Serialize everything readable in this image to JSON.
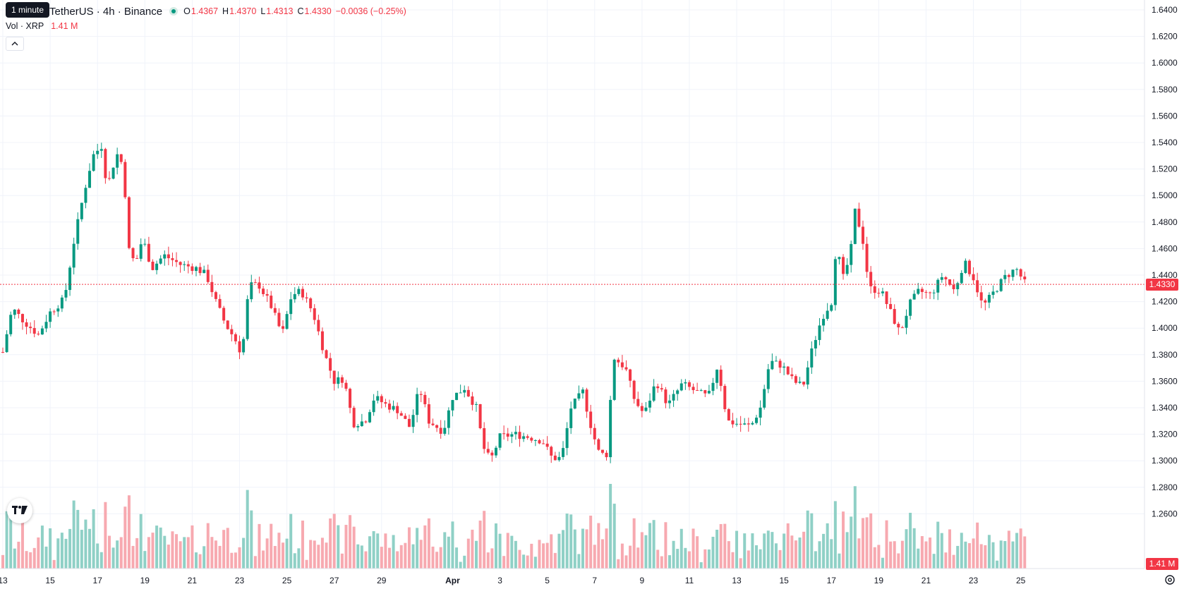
{
  "header": {
    "symbol_title": "TetherUS · 4h · Binance",
    "tooltip": "1 minute",
    "ohlc": {
      "o_label": "O",
      "o": "1.4367",
      "h_label": "H",
      "h": "1.4370",
      "l_label": "L",
      "l": "1.4313",
      "c_label": "C",
      "c": "1.4330"
    },
    "change": "−0.0036 (−0.25%)",
    "volume_label": "Vol · XRP",
    "volume_value": "1.41 M"
  },
  "price_scale": {
    "ticks": [
      "1.6400",
      "1.6200",
      "1.6000",
      "1.5800",
      "1.5600",
      "1.5400",
      "1.5200",
      "1.5000",
      "1.4800",
      "1.4600",
      "1.4400",
      "1.4200",
      "1.4000",
      "1.3800",
      "1.3600",
      "1.3400",
      "1.3200",
      "1.3000",
      "1.2800",
      "1.2600"
    ],
    "last_price_tag": "1.4330",
    "volume_tag": "1.41 M"
  },
  "time_scale": {
    "ticks": [
      {
        "label": "13",
        "day": 13
      },
      {
        "label": "15",
        "day": 15
      },
      {
        "label": "17",
        "day": 17
      },
      {
        "label": "19",
        "day": 19
      },
      {
        "label": "21",
        "day": 21
      },
      {
        "label": "23",
        "day": 23
      },
      {
        "label": "25",
        "day": 25
      },
      {
        "label": "27",
        "day": 27
      },
      {
        "label": "29",
        "day": 29
      },
      {
        "label": "Apr",
        "day": 32
      },
      {
        "label": "3",
        "day": 34
      },
      {
        "label": "5",
        "day": 36
      },
      {
        "label": "7",
        "day": 38
      },
      {
        "label": "9",
        "day": 40
      },
      {
        "label": "11",
        "day": 42
      },
      {
        "label": "13",
        "day": 44
      },
      {
        "label": "15",
        "day": 46
      },
      {
        "label": "17",
        "day": 48
      },
      {
        "label": "19",
        "day": 50
      },
      {
        "label": "21",
        "day": 52
      },
      {
        "label": "23",
        "day": 54
      },
      {
        "label": "25",
        "day": 56
      }
    ]
  },
  "colors": {
    "up": "#089981",
    "down": "#f23645",
    "vol_up": "#8fd0c6",
    "vol_down": "#f7a9b0",
    "grid": "#f0f3fa",
    "text": "#131722"
  },
  "chart_data": {
    "type": "candlestick",
    "title": "TetherUS · 4h · Binance",
    "timeframe": "4h",
    "ylim": [
      1.26,
      1.64
    ],
    "last_close": 1.433,
    "key_levels": {
      "anchors": [
        {
          "day": 13.0,
          "price": 1.382
        },
        {
          "day": 13.4,
          "price": 1.415
        },
        {
          "day": 13.9,
          "price": 1.405
        },
        {
          "day": 14.5,
          "price": 1.395
        },
        {
          "day": 15.0,
          "price": 1.412
        },
        {
          "day": 15.6,
          "price": 1.422
        },
        {
          "day": 16.0,
          "price": 1.465
        },
        {
          "day": 16.4,
          "price": 1.5
        },
        {
          "day": 16.8,
          "price": 1.53
        },
        {
          "day": 17.2,
          "price": 1.538
        },
        {
          "day": 17.4,
          "price": 1.505
        },
        {
          "day": 17.8,
          "price": 1.532
        },
        {
          "day": 18.1,
          "price": 1.522
        },
        {
          "day": 18.3,
          "price": 1.46
        },
        {
          "day": 18.6,
          "price": 1.448
        },
        {
          "day": 18.9,
          "price": 1.468
        },
        {
          "day": 19.3,
          "price": 1.445
        },
        {
          "day": 19.8,
          "price": 1.455
        },
        {
          "day": 20.5,
          "price": 1.448
        },
        {
          "day": 21.2,
          "price": 1.445
        },
        {
          "day": 21.6,
          "price": 1.44
        },
        {
          "day": 22.0,
          "price": 1.42
        },
        {
          "day": 22.4,
          "price": 1.403
        },
        {
          "day": 22.8,
          "price": 1.392
        },
        {
          "day": 23.1,
          "price": 1.38
        },
        {
          "day": 23.4,
          "price": 1.432
        },
        {
          "day": 23.8,
          "price": 1.433
        },
        {
          "day": 24.3,
          "price": 1.418
        },
        {
          "day": 24.8,
          "price": 1.395
        },
        {
          "day": 25.2,
          "price": 1.425
        },
        {
          "day": 25.6,
          "price": 1.428
        },
        {
          "day": 26.1,
          "price": 1.412
        },
        {
          "day": 26.6,
          "price": 1.38
        },
        {
          "day": 27.0,
          "price": 1.36
        },
        {
          "day": 27.4,
          "price": 1.362
        },
        {
          "day": 27.8,
          "price": 1.328
        },
        {
          "day": 28.3,
          "price": 1.33
        },
        {
          "day": 28.7,
          "price": 1.348
        },
        {
          "day": 29.2,
          "price": 1.342
        },
        {
          "day": 29.7,
          "price": 1.338
        },
        {
          "day": 30.2,
          "price": 1.325
        },
        {
          "day": 30.6,
          "price": 1.355
        },
        {
          "day": 31.0,
          "price": 1.33
        },
        {
          "day": 31.6,
          "price": 1.322
        },
        {
          "day": 32.0,
          "price": 1.348
        },
        {
          "day": 32.5,
          "price": 1.355
        },
        {
          "day": 33.0,
          "price": 1.34
        },
        {
          "day": 33.3,
          "price": 1.31
        },
        {
          "day": 33.6,
          "price": 1.3
        },
        {
          "day": 34.0,
          "price": 1.318
        },
        {
          "day": 34.6,
          "price": 1.32
        },
        {
          "day": 35.2,
          "price": 1.318
        },
        {
          "day": 35.8,
          "price": 1.315
        },
        {
          "day": 36.2,
          "price": 1.302
        },
        {
          "day": 36.6,
          "price": 1.302
        },
        {
          "day": 37.0,
          "price": 1.34
        },
        {
          "day": 37.5,
          "price": 1.352
        },
        {
          "day": 37.9,
          "price": 1.322
        },
        {
          "day": 38.2,
          "price": 1.305
        },
        {
          "day": 38.5,
          "price": 1.305
        },
        {
          "day": 38.8,
          "price": 1.378
        },
        {
          "day": 39.3,
          "price": 1.37
        },
        {
          "day": 39.7,
          "price": 1.345
        },
        {
          "day": 40.1,
          "price": 1.335
        },
        {
          "day": 40.6,
          "price": 1.36
        },
        {
          "day": 41.1,
          "price": 1.342
        },
        {
          "day": 41.7,
          "price": 1.358
        },
        {
          "day": 42.3,
          "price": 1.352
        },
        {
          "day": 42.8,
          "price": 1.348
        },
        {
          "day": 43.2,
          "price": 1.372
        },
        {
          "day": 43.6,
          "price": 1.33
        },
        {
          "day": 44.0,
          "price": 1.328
        },
        {
          "day": 44.6,
          "price": 1.326
        },
        {
          "day": 45.0,
          "price": 1.34
        },
        {
          "day": 45.4,
          "price": 1.375
        },
        {
          "day": 45.9,
          "price": 1.372
        },
        {
          "day": 46.4,
          "price": 1.36
        },
        {
          "day": 46.8,
          "price": 1.356
        },
        {
          "day": 47.2,
          "price": 1.385
        },
        {
          "day": 47.6,
          "price": 1.408
        },
        {
          "day": 48.0,
          "price": 1.42
        },
        {
          "day": 48.2,
          "price": 1.462
        },
        {
          "day": 48.5,
          "price": 1.438
        },
        {
          "day": 48.8,
          "price": 1.455
        },
        {
          "day": 49.0,
          "price": 1.488
        },
        {
          "day": 49.3,
          "price": 1.47
        },
        {
          "day": 49.6,
          "price": 1.43
        },
        {
          "day": 50.1,
          "price": 1.428
        },
        {
          "day": 50.5,
          "price": 1.412
        },
        {
          "day": 50.9,
          "price": 1.396
        },
        {
          "day": 51.3,
          "price": 1.418
        },
        {
          "day": 51.7,
          "price": 1.428
        },
        {
          "day": 52.2,
          "price": 1.425
        },
        {
          "day": 52.7,
          "price": 1.44
        },
        {
          "day": 53.2,
          "price": 1.428
        },
        {
          "day": 53.6,
          "price": 1.45
        },
        {
          "day": 54.0,
          "price": 1.438
        },
        {
          "day": 54.4,
          "price": 1.416
        },
        {
          "day": 54.9,
          "price": 1.428
        },
        {
          "day": 55.3,
          "price": 1.438
        },
        {
          "day": 55.8,
          "price": 1.445
        },
        {
          "day": 56.2,
          "price": 1.433
        }
      ]
    },
    "volume": {
      "label": "Vol · XRP",
      "last": "1.41 M"
    }
  }
}
